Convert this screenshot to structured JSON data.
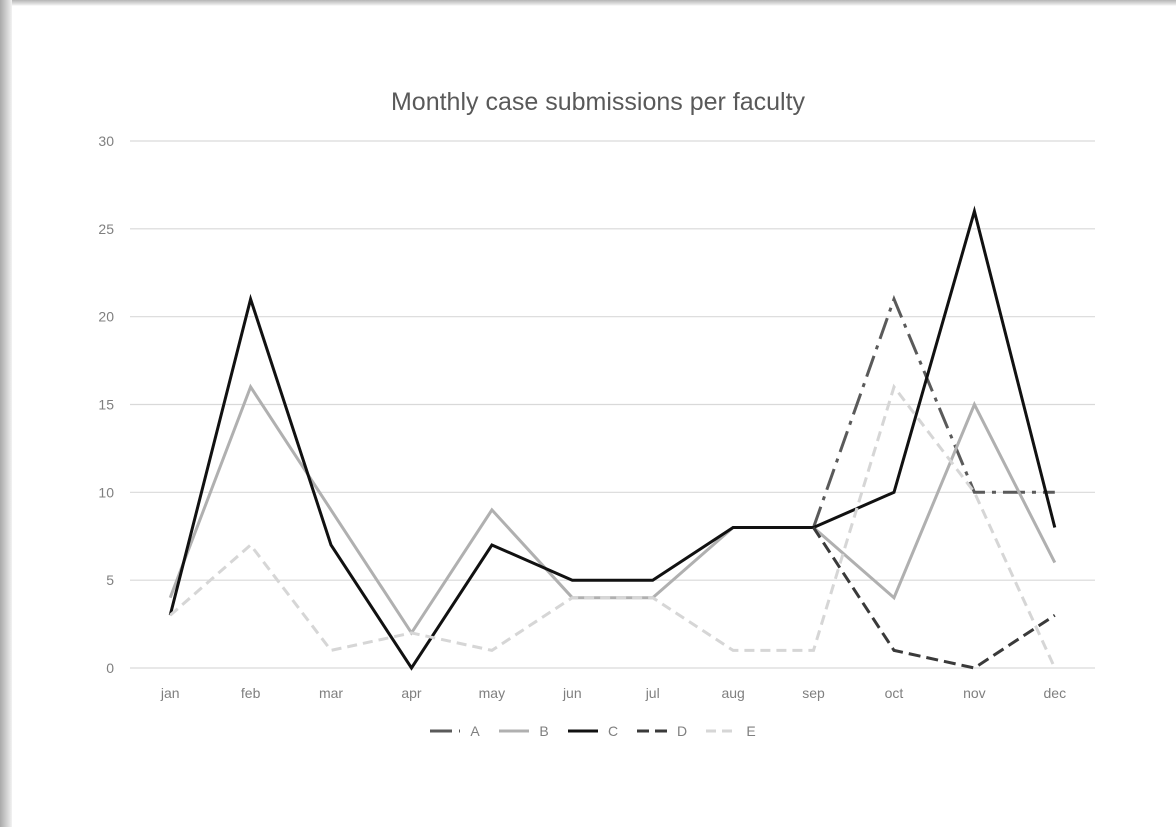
{
  "chart_data": {
    "type": "line",
    "title": "Monthly case submissions per faculty",
    "xlabel": "",
    "ylabel": "",
    "categories": [
      "jan",
      "feb",
      "mar",
      "apr",
      "may",
      "jun",
      "jul",
      "aug",
      "sep",
      "oct",
      "nov",
      "dec"
    ],
    "ylim": [
      0,
      30
    ],
    "yticks": [
      0,
      5,
      10,
      15,
      20,
      25,
      30
    ],
    "grid": true,
    "legend_position": "bottom",
    "series": [
      {
        "name": "A",
        "values": [
          null,
          null,
          null,
          null,
          null,
          null,
          null,
          null,
          8,
          21,
          10,
          10
        ],
        "color": "#5a5a5a",
        "dash": "22 7 4 7"
      },
      {
        "name": "B",
        "values": [
          4,
          16,
          9,
          2,
          9,
          4,
          4,
          8,
          8,
          4,
          15,
          6
        ],
        "color": "#b0b0b0",
        "dash": ""
      },
      {
        "name": "C",
        "values": [
          3,
          21,
          7,
          0,
          7,
          5,
          5,
          8,
          8,
          10,
          26,
          8
        ],
        "color": "#111111",
        "dash": ""
      },
      {
        "name": "D",
        "values": [
          null,
          null,
          null,
          null,
          null,
          null,
          null,
          null,
          8,
          1,
          0,
          3
        ],
        "color": "#3a3a3a",
        "dash": "12 6"
      },
      {
        "name": "E",
        "values": [
          3,
          7,
          1,
          2,
          1,
          4,
          4,
          1,
          1,
          16,
          10,
          0
        ],
        "color": "#d6d6d6",
        "dash": "10 6"
      }
    ]
  }
}
